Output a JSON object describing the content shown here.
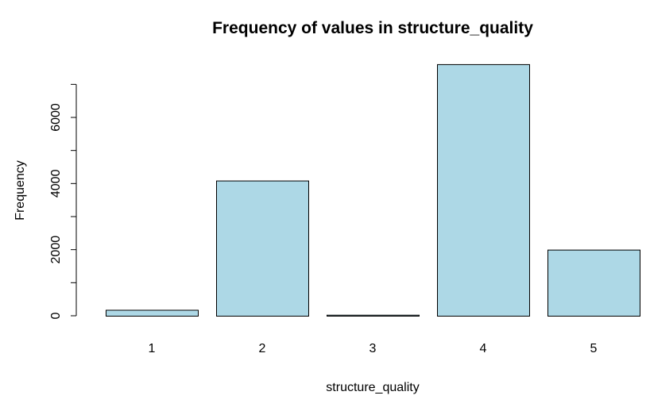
{
  "chart_data": {
    "type": "bar",
    "title": "Frequency of values in structure_quality",
    "xlabel": "structure_quality",
    "ylabel": "Frequency",
    "categories": [
      "1",
      "2",
      "3",
      "4",
      "5"
    ],
    "values": [
      180,
      4090,
      30,
      7610,
      2000
    ],
    "yticks": [
      0,
      2000,
      4000,
      6000
    ],
    "ylim": [
      0,
      7000
    ],
    "bar_color": "#add8e6",
    "border_color": "#000000",
    "grid": false
  }
}
